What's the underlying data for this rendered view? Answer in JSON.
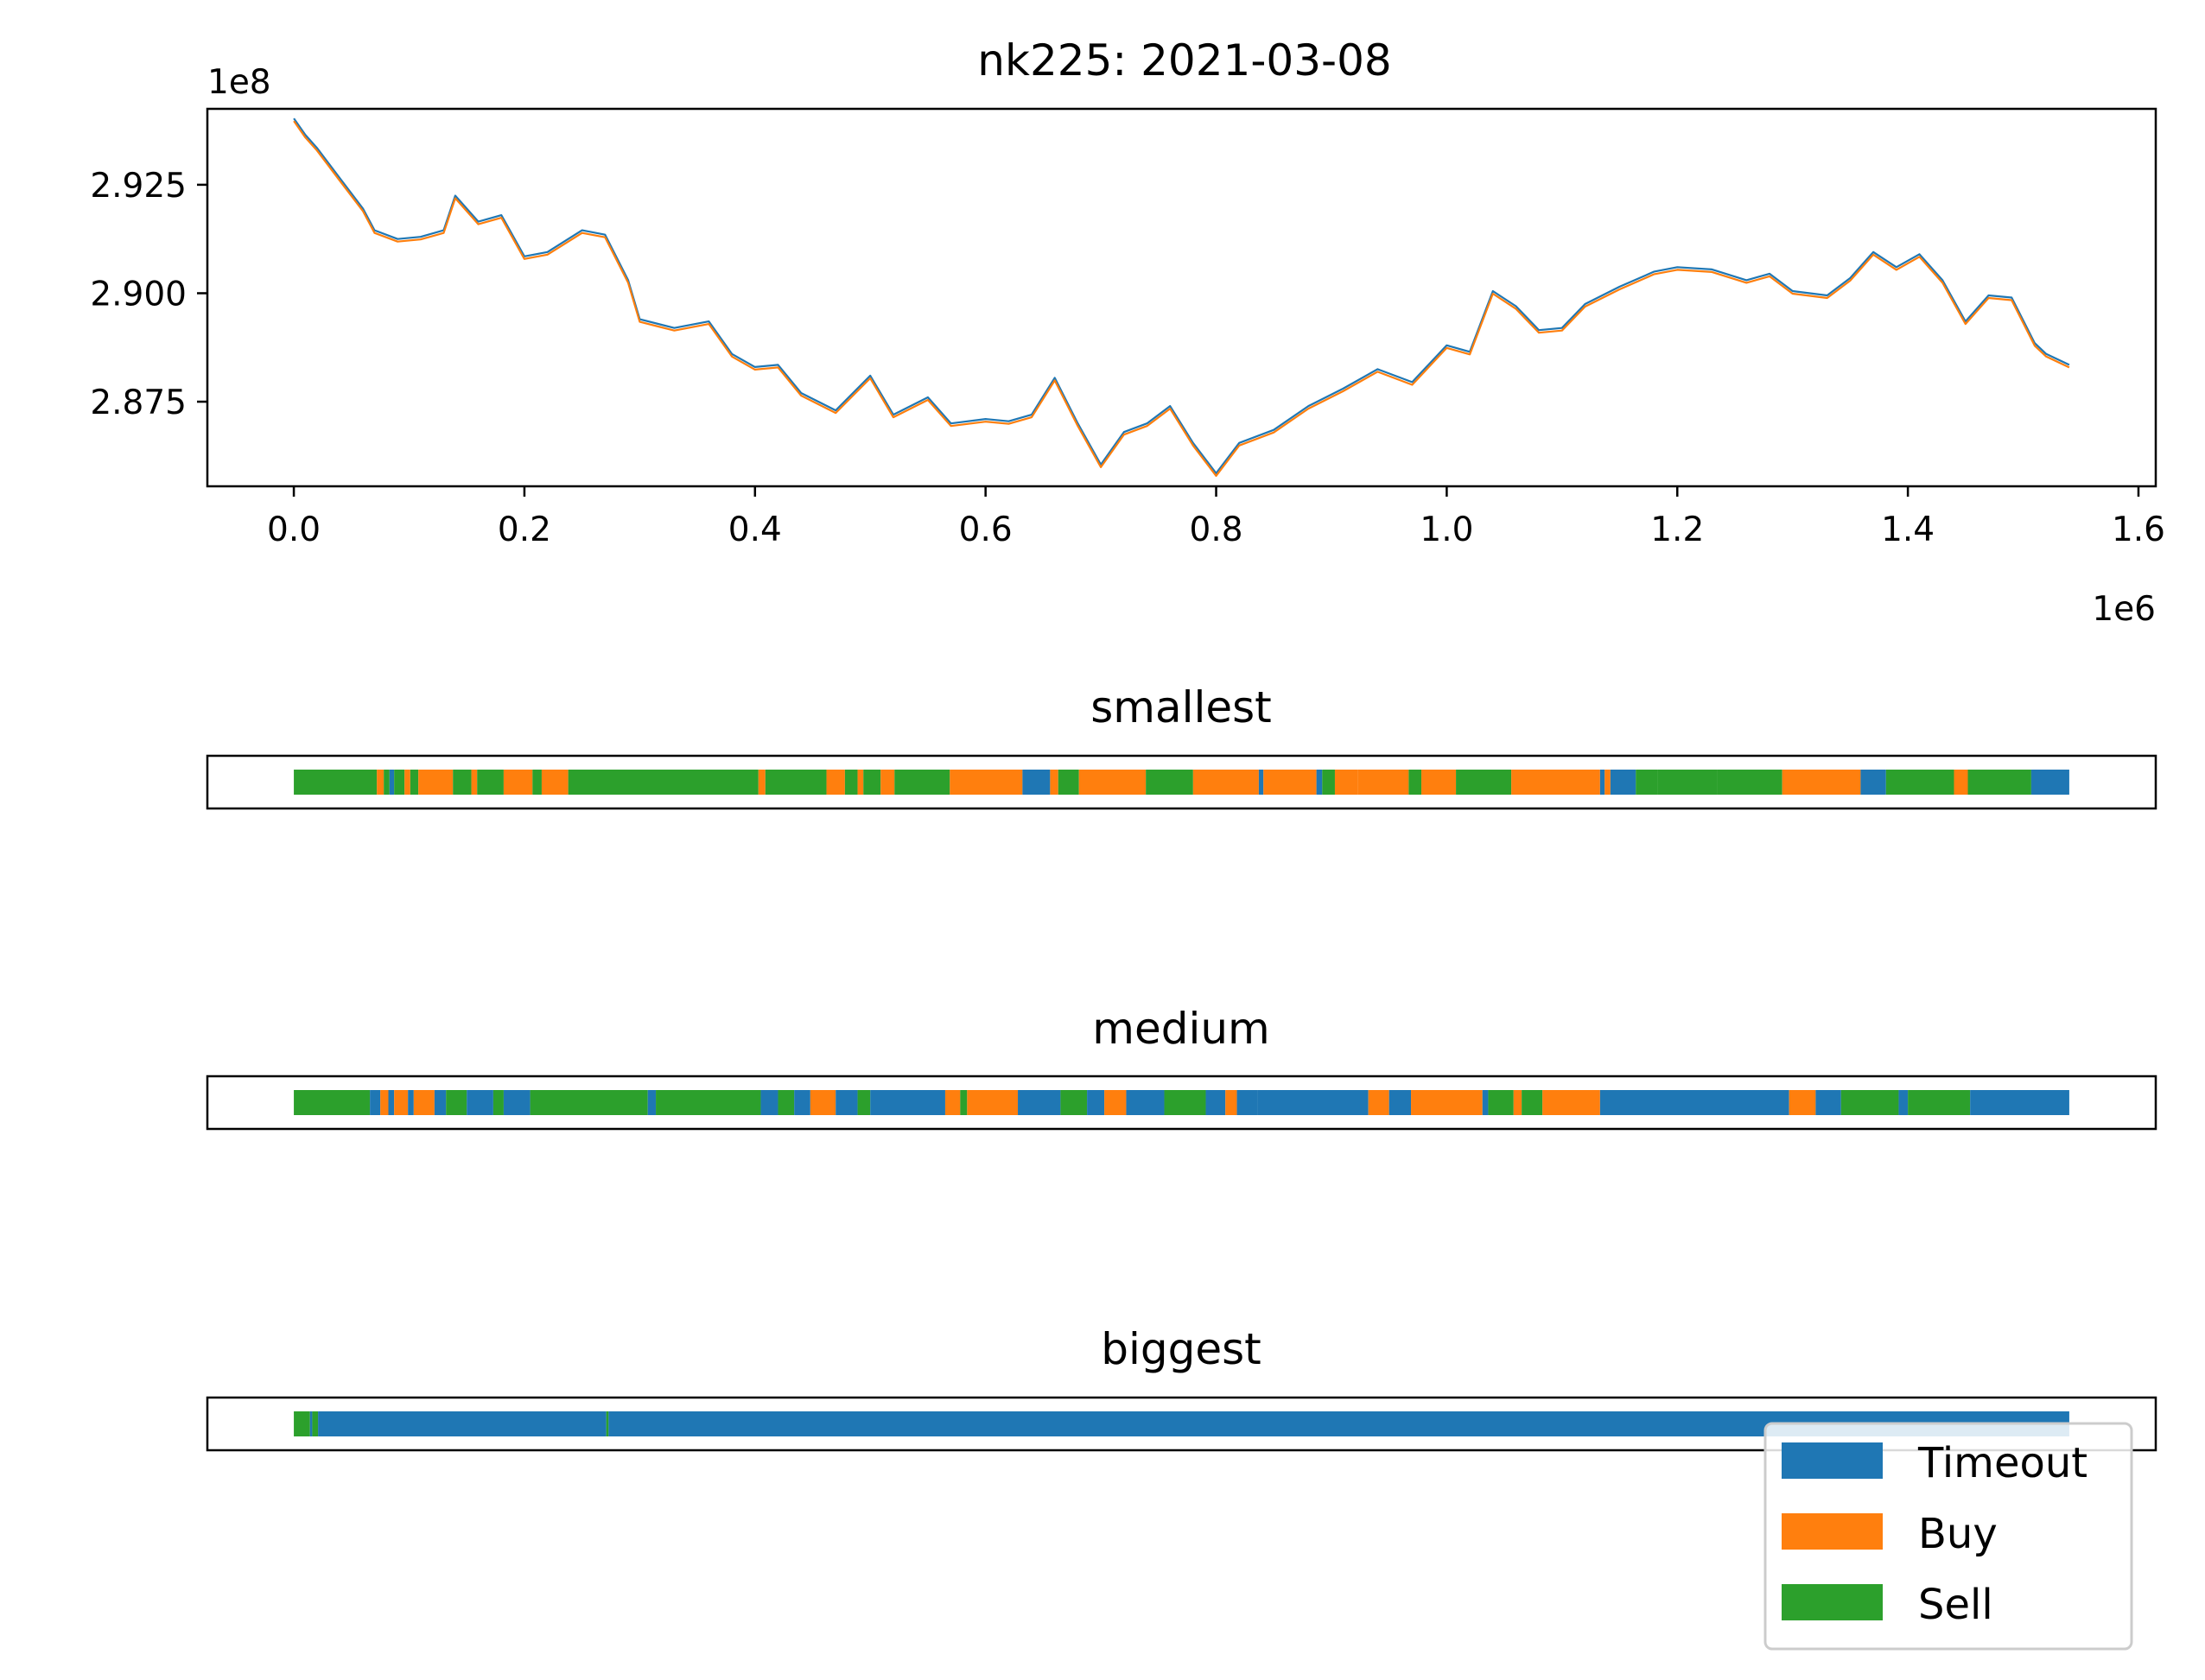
{
  "colors": {
    "timeout": "#1f77b4",
    "buy": "#ff7f0e",
    "sell": "#2ca02c"
  },
  "chart_data": [
    {
      "type": "line",
      "title": "nk225: 2021-03-08",
      "x_multiplier": "1e6",
      "y_multiplier": "1e8",
      "xlim": [
        -0.075,
        1.615
      ],
      "ylim": [
        2.8555,
        2.9425
      ],
      "x_ticks": [
        0.0,
        0.2,
        0.4,
        0.6,
        0.8,
        1.0,
        1.2,
        1.4,
        1.6
      ],
      "x_tick_labels": [
        "0.0",
        "0.2",
        "0.4",
        "0.6",
        "0.8",
        "1.0",
        "1.2",
        "1.4",
        "1.6"
      ],
      "y_ticks": [
        2.925,
        2.9,
        2.875
      ],
      "y_tick_labels": [
        "2.925",
        "2.900",
        "2.875"
      ],
      "series": [
        {
          "color": "#1f77b4",
          "x": [
            0.0,
            0.01,
            0.02,
            0.04,
            0.06,
            0.07,
            0.09,
            0.11,
            0.13,
            0.14,
            0.16,
            0.18,
            0.2,
            0.22,
            0.25,
            0.27,
            0.29,
            0.3,
            0.33,
            0.36,
            0.38,
            0.4,
            0.42,
            0.44,
            0.47,
            0.5,
            0.52,
            0.55,
            0.57,
            0.6,
            0.62,
            0.64,
            0.66,
            0.68,
            0.7,
            0.72,
            0.74,
            0.76,
            0.78,
            0.8,
            0.82,
            0.85,
            0.88,
            0.91,
            0.94,
            0.97,
            1.0,
            1.02,
            1.04,
            1.06,
            1.08,
            1.1,
            1.12,
            1.15,
            1.18,
            1.2,
            1.23,
            1.26,
            1.28,
            1.3,
            1.33,
            1.35,
            1.37,
            1.39,
            1.41,
            1.43,
            1.45,
            1.47,
            1.49,
            1.51,
            1.52,
            1.54
          ],
          "y": [
            2.9403,
            2.9365,
            2.9335,
            2.9265,
            2.9195,
            2.9145,
            2.9125,
            2.913,
            2.9145,
            2.9225,
            2.9165,
            2.918,
            2.9085,
            2.9095,
            2.9145,
            2.9135,
            2.903,
            2.894,
            2.892,
            2.8935,
            2.886,
            2.883,
            2.8835,
            2.877,
            2.873,
            2.881,
            2.872,
            2.876,
            2.87,
            2.871,
            2.8705,
            2.872,
            2.8805,
            2.87,
            2.8605,
            2.868,
            2.87,
            2.874,
            2.8655,
            2.8585,
            2.8655,
            2.8685,
            2.874,
            2.878,
            2.8825,
            2.8795,
            2.888,
            2.8865,
            2.9005,
            2.897,
            2.8915,
            2.892,
            2.8975,
            2.9015,
            2.905,
            2.906,
            2.9055,
            2.903,
            2.9045,
            2.9005,
            2.8995,
            2.9035,
            2.9095,
            2.906,
            2.909,
            2.903,
            2.8935,
            2.8995,
            2.899,
            2.8885,
            2.886,
            2.8835
          ]
        },
        {
          "color": "#ff7f0e",
          "x": [
            0.0,
            0.01,
            0.02,
            0.04,
            0.06,
            0.07,
            0.09,
            0.11,
            0.13,
            0.14,
            0.16,
            0.18,
            0.2,
            0.22,
            0.25,
            0.27,
            0.29,
            0.3,
            0.33,
            0.36,
            0.38,
            0.4,
            0.42,
            0.44,
            0.47,
            0.5,
            0.52,
            0.55,
            0.57,
            0.6,
            0.62,
            0.64,
            0.66,
            0.68,
            0.7,
            0.72,
            0.74,
            0.76,
            0.78,
            0.8,
            0.82,
            0.85,
            0.88,
            0.91,
            0.94,
            0.97,
            1.0,
            1.02,
            1.04,
            1.06,
            1.08,
            1.1,
            1.12,
            1.15,
            1.18,
            1.2,
            1.23,
            1.26,
            1.28,
            1.3,
            1.33,
            1.35,
            1.37,
            1.39,
            1.41,
            1.43,
            1.45,
            1.47,
            1.49,
            1.51,
            1.52,
            1.54
          ],
          "y": [
            2.9397,
            2.9359,
            2.9329,
            2.9259,
            2.9189,
            2.9139,
            2.9119,
            2.9124,
            2.9139,
            2.9219,
            2.9159,
            2.9174,
            2.9079,
            2.9089,
            2.9139,
            2.9129,
            2.9024,
            2.8934,
            2.8914,
            2.8929,
            2.8854,
            2.8824,
            2.8829,
            2.8764,
            2.8724,
            2.8804,
            2.8714,
            2.8754,
            2.8694,
            2.8704,
            2.8699,
            2.8714,
            2.8799,
            2.8694,
            2.8599,
            2.8674,
            2.8694,
            2.8734,
            2.8649,
            2.8579,
            2.8649,
            2.8679,
            2.8734,
            2.8774,
            2.8819,
            2.8789,
            2.8874,
            2.8859,
            2.8999,
            2.8964,
            2.8909,
            2.8914,
            2.8969,
            2.9009,
            2.9044,
            2.9054,
            2.9049,
            2.9024,
            2.9039,
            2.8999,
            2.8989,
            2.9029,
            2.9089,
            2.9054,
            2.9084,
            2.9024,
            2.8929,
            2.8989,
            2.8984,
            2.8879,
            2.8854,
            2.8829
          ]
        }
      ]
    },
    {
      "type": "bar",
      "title": "smallest",
      "xlim": [
        -0.075,
        1.615
      ],
      "segments": [
        {
          "start": 0.0,
          "end": 0.072,
          "cls": "Sell"
        },
        {
          "start": 0.072,
          "end": 0.078,
          "cls": "Buy"
        },
        {
          "start": 0.078,
          "end": 0.083,
          "cls": "Sell"
        },
        {
          "start": 0.083,
          "end": 0.087,
          "cls": "Timeout"
        },
        {
          "start": 0.087,
          "end": 0.096,
          "cls": "Sell"
        },
        {
          "start": 0.096,
          "end": 0.101,
          "cls": "Buy"
        },
        {
          "start": 0.101,
          "end": 0.108,
          "cls": "Sell"
        },
        {
          "start": 0.108,
          "end": 0.138,
          "cls": "Buy"
        },
        {
          "start": 0.138,
          "end": 0.154,
          "cls": "Sell"
        },
        {
          "start": 0.154,
          "end": 0.159,
          "cls": "Buy"
        },
        {
          "start": 0.159,
          "end": 0.182,
          "cls": "Sell"
        },
        {
          "start": 0.182,
          "end": 0.207,
          "cls": "Buy"
        },
        {
          "start": 0.207,
          "end": 0.215,
          "cls": "Sell"
        },
        {
          "start": 0.215,
          "end": 0.238,
          "cls": "Buy"
        },
        {
          "start": 0.238,
          "end": 0.403,
          "cls": "Sell"
        },
        {
          "start": 0.403,
          "end": 0.409,
          "cls": "Buy"
        },
        {
          "start": 0.409,
          "end": 0.462,
          "cls": "Sell"
        },
        {
          "start": 0.462,
          "end": 0.478,
          "cls": "Buy"
        },
        {
          "start": 0.478,
          "end": 0.489,
          "cls": "Sell"
        },
        {
          "start": 0.489,
          "end": 0.494,
          "cls": "Buy"
        },
        {
          "start": 0.494,
          "end": 0.509,
          "cls": "Sell"
        },
        {
          "start": 0.509,
          "end": 0.521,
          "cls": "Buy"
        },
        {
          "start": 0.521,
          "end": 0.569,
          "cls": "Sell"
        },
        {
          "start": 0.569,
          "end": 0.632,
          "cls": "Buy"
        },
        {
          "start": 0.632,
          "end": 0.656,
          "cls": "Timeout"
        },
        {
          "start": 0.656,
          "end": 0.663,
          "cls": "Buy"
        },
        {
          "start": 0.663,
          "end": 0.681,
          "cls": "Sell"
        },
        {
          "start": 0.681,
          "end": 0.739,
          "cls": "Buy"
        },
        {
          "start": 0.739,
          "end": 0.78,
          "cls": "Sell"
        },
        {
          "start": 0.78,
          "end": 0.837,
          "cls": "Buy"
        },
        {
          "start": 0.837,
          "end": 0.841,
          "cls": "Timeout"
        },
        {
          "start": 0.841,
          "end": 0.887,
          "cls": "Buy"
        },
        {
          "start": 0.887,
          "end": 0.892,
          "cls": "Timeout"
        },
        {
          "start": 0.892,
          "end": 0.903,
          "cls": "Sell"
        },
        {
          "start": 0.903,
          "end": 0.923,
          "cls": "Buy"
        },
        {
          "start": 0.923,
          "end": 0.967,
          "cls": "Buy"
        },
        {
          "start": 0.967,
          "end": 0.978,
          "cls": "Sell"
        },
        {
          "start": 0.978,
          "end": 1.008,
          "cls": "Buy"
        },
        {
          "start": 1.008,
          "end": 1.056,
          "cls": "Sell"
        },
        {
          "start": 1.056,
          "end": 1.133,
          "cls": "Buy"
        },
        {
          "start": 1.133,
          "end": 1.137,
          "cls": "Timeout"
        },
        {
          "start": 1.137,
          "end": 1.142,
          "cls": "Buy"
        },
        {
          "start": 1.142,
          "end": 1.164,
          "cls": "Timeout"
        },
        {
          "start": 1.164,
          "end": 1.183,
          "cls": "Sell"
        },
        {
          "start": 1.183,
          "end": 1.235,
          "cls": "Sell"
        },
        {
          "start": 1.235,
          "end": 1.291,
          "cls": "Sell"
        },
        {
          "start": 1.291,
          "end": 1.359,
          "cls": "Buy"
        },
        {
          "start": 1.359,
          "end": 1.381,
          "cls": "Timeout"
        },
        {
          "start": 1.381,
          "end": 1.44,
          "cls": "Sell"
        },
        {
          "start": 1.44,
          "end": 1.452,
          "cls": "Buy"
        },
        {
          "start": 1.452,
          "end": 1.507,
          "cls": "Sell"
        },
        {
          "start": 1.507,
          "end": 1.54,
          "cls": "Timeout"
        }
      ]
    },
    {
      "type": "bar",
      "title": "medium",
      "xlim": [
        -0.075,
        1.615
      ],
      "segments": [
        {
          "start": 0.0,
          "end": 0.066,
          "cls": "Sell"
        },
        {
          "start": 0.066,
          "end": 0.075,
          "cls": "Timeout"
        },
        {
          "start": 0.075,
          "end": 0.082,
          "cls": "Buy"
        },
        {
          "start": 0.082,
          "end": 0.087,
          "cls": "Timeout"
        },
        {
          "start": 0.087,
          "end": 0.099,
          "cls": "Buy"
        },
        {
          "start": 0.099,
          "end": 0.104,
          "cls": "Timeout"
        },
        {
          "start": 0.104,
          "end": 0.122,
          "cls": "Buy"
        },
        {
          "start": 0.122,
          "end": 0.132,
          "cls": "Timeout"
        },
        {
          "start": 0.132,
          "end": 0.15,
          "cls": "Sell"
        },
        {
          "start": 0.15,
          "end": 0.173,
          "cls": "Timeout"
        },
        {
          "start": 0.173,
          "end": 0.182,
          "cls": "Sell"
        },
        {
          "start": 0.182,
          "end": 0.205,
          "cls": "Timeout"
        },
        {
          "start": 0.205,
          "end": 0.307,
          "cls": "Sell"
        },
        {
          "start": 0.307,
          "end": 0.314,
          "cls": "Timeout"
        },
        {
          "start": 0.314,
          "end": 0.405,
          "cls": "Sell"
        },
        {
          "start": 0.405,
          "end": 0.42,
          "cls": "Timeout"
        },
        {
          "start": 0.42,
          "end": 0.434,
          "cls": "Sell"
        },
        {
          "start": 0.434,
          "end": 0.448,
          "cls": "Timeout"
        },
        {
          "start": 0.448,
          "end": 0.47,
          "cls": "Buy"
        },
        {
          "start": 0.47,
          "end": 0.489,
          "cls": "Timeout"
        },
        {
          "start": 0.489,
          "end": 0.5,
          "cls": "Sell"
        },
        {
          "start": 0.5,
          "end": 0.565,
          "cls": "Timeout"
        },
        {
          "start": 0.565,
          "end": 0.578,
          "cls": "Buy"
        },
        {
          "start": 0.578,
          "end": 0.584,
          "cls": "Sell"
        },
        {
          "start": 0.584,
          "end": 0.628,
          "cls": "Buy"
        },
        {
          "start": 0.628,
          "end": 0.665,
          "cls": "Timeout"
        },
        {
          "start": 0.665,
          "end": 0.688,
          "cls": "Sell"
        },
        {
          "start": 0.688,
          "end": 0.703,
          "cls": "Timeout"
        },
        {
          "start": 0.703,
          "end": 0.722,
          "cls": "Buy"
        },
        {
          "start": 0.722,
          "end": 0.755,
          "cls": "Timeout"
        },
        {
          "start": 0.755,
          "end": 0.791,
          "cls": "Sell"
        },
        {
          "start": 0.791,
          "end": 0.808,
          "cls": "Timeout"
        },
        {
          "start": 0.808,
          "end": 0.818,
          "cls": "Buy"
        },
        {
          "start": 0.818,
          "end": 0.836,
          "cls": "Timeout"
        },
        {
          "start": 0.836,
          "end": 0.932,
          "cls": "Timeout"
        },
        {
          "start": 0.932,
          "end": 0.95,
          "cls": "Buy"
        },
        {
          "start": 0.95,
          "end": 0.969,
          "cls": "Timeout"
        },
        {
          "start": 0.969,
          "end": 1.031,
          "cls": "Buy"
        },
        {
          "start": 1.031,
          "end": 1.036,
          "cls": "Timeout"
        },
        {
          "start": 1.036,
          "end": 1.058,
          "cls": "Sell"
        },
        {
          "start": 1.058,
          "end": 1.065,
          "cls": "Buy"
        },
        {
          "start": 1.065,
          "end": 1.083,
          "cls": "Sell"
        },
        {
          "start": 1.083,
          "end": 1.133,
          "cls": "Buy"
        },
        {
          "start": 1.133,
          "end": 1.297,
          "cls": "Timeout"
        },
        {
          "start": 1.297,
          "end": 1.32,
          "cls": "Buy"
        },
        {
          "start": 1.32,
          "end": 1.342,
          "cls": "Timeout"
        },
        {
          "start": 1.342,
          "end": 1.392,
          "cls": "Sell"
        },
        {
          "start": 1.392,
          "end": 1.4,
          "cls": "Timeout"
        },
        {
          "start": 1.4,
          "end": 1.454,
          "cls": "Sell"
        },
        {
          "start": 1.454,
          "end": 1.54,
          "cls": "Timeout"
        }
      ]
    },
    {
      "type": "bar",
      "title": "biggest",
      "xlim": [
        -0.075,
        1.615
      ],
      "segments": [
        {
          "start": 0.0,
          "end": 0.014,
          "cls": "Sell"
        },
        {
          "start": 0.014,
          "end": 0.016,
          "cls": "Timeout"
        },
        {
          "start": 0.016,
          "end": 0.021,
          "cls": "Sell"
        },
        {
          "start": 0.021,
          "end": 0.271,
          "cls": "Timeout"
        },
        {
          "start": 0.271,
          "end": 0.273,
          "cls": "Sell"
        },
        {
          "start": 0.273,
          "end": 1.54,
          "cls": "Timeout"
        }
      ]
    }
  ],
  "legend": {
    "position": "lower-right",
    "items": [
      {
        "label": "Timeout",
        "color": "#1f77b4"
      },
      {
        "label": "Buy",
        "color": "#ff7f0e"
      },
      {
        "label": "Sell",
        "color": "#2ca02c"
      }
    ]
  }
}
